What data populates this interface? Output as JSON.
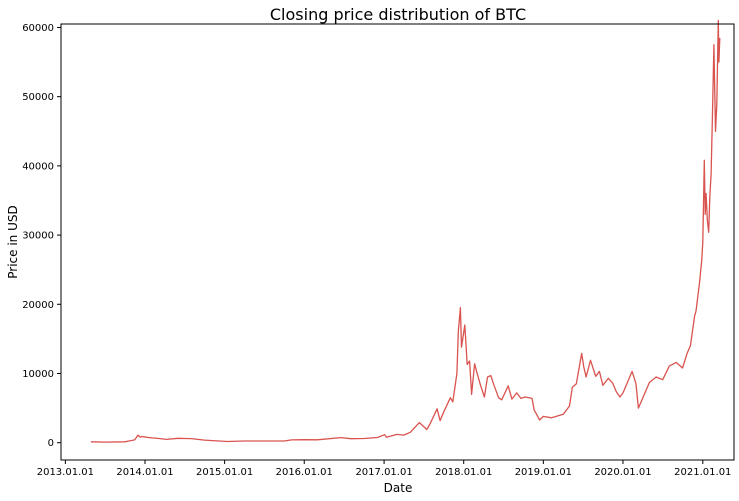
{
  "chart_data": {
    "type": "line",
    "title": "Closing price distribution of BTC",
    "xlabel": "Date",
    "ylabel": "Price in USD",
    "grid": false,
    "legend": "none",
    "ylim": [
      -2500,
      60500
    ],
    "xlim": [
      "2012-12-12",
      "2021-05-24"
    ],
    "x_ticks": [
      "2013.01.01",
      "2014.01.01",
      "2015.01.01",
      "2016.01.01",
      "2017.01.01",
      "2018.01.01",
      "2019.01.01",
      "2020.01.01",
      "2021.01.01"
    ],
    "y_ticks": [
      "0",
      "10000",
      "20000",
      "30000",
      "40000",
      "50000",
      "60000"
    ],
    "series": [
      {
        "color": "#d9534f",
        "x": [
          "2013-04-28",
          "2013-07-01",
          "2013-10-01",
          "2013-11-15",
          "2013-11-30",
          "2013-12-10",
          "2013-12-18",
          "2014-01-05",
          "2014-02-01",
          "2014-03-01",
          "2014-04-10",
          "2014-06-01",
          "2014-08-01",
          "2014-10-01",
          "2015-01-14",
          "2015-04-01",
          "2015-07-01",
          "2015-10-01",
          "2015-11-04",
          "2016-01-01",
          "2016-03-01",
          "2016-06-17",
          "2016-08-01",
          "2016-10-01",
          "2016-12-01",
          "2017-01-04",
          "2017-01-12",
          "2017-03-01",
          "2017-04-01",
          "2017-05-01",
          "2017-06-12",
          "2017-07-16",
          "2017-08-01",
          "2017-09-01",
          "2017-09-15",
          "2017-10-01",
          "2017-11-01",
          "2017-11-12",
          "2017-12-01",
          "2017-12-07",
          "2017-12-17",
          "2017-12-22",
          "2018-01-06",
          "2018-01-17",
          "2018-01-28",
          "2018-02-06",
          "2018-02-20",
          "2018-03-01",
          "2018-03-20",
          "2018-04-06",
          "2018-04-20",
          "2018-05-05",
          "2018-05-20",
          "2018-06-10",
          "2018-06-24",
          "2018-07-24",
          "2018-08-10",
          "2018-09-01",
          "2018-09-20",
          "2018-10-10",
          "2018-11-10",
          "2018-11-20",
          "2018-12-01",
          "2018-12-15",
          "2019-01-01",
          "2019-02-08",
          "2019-03-01",
          "2019-04-02",
          "2019-05-01",
          "2019-05-14",
          "2019-06-01",
          "2019-06-26",
          "2019-07-05",
          "2019-07-16",
          "2019-08-05",
          "2019-08-29",
          "2019-09-15",
          "2019-10-01",
          "2019-10-26",
          "2019-11-15",
          "2019-12-01",
          "2019-12-18",
          "2020-01-01",
          "2020-02-12",
          "2020-03-01",
          "2020-03-12",
          "2020-03-31",
          "2020-05-01",
          "2020-06-01",
          "2020-07-01",
          "2020-08-01",
          "2020-09-01",
          "2020-09-30",
          "2020-10-21",
          "2020-11-05",
          "2020-11-25",
          "2020-12-01",
          "2020-12-17",
          "2020-12-27",
          "2021-01-01",
          "2021-01-08",
          "2021-01-12",
          "2021-01-16",
          "2021-01-22",
          "2021-01-28",
          "2021-02-02",
          "2021-02-08",
          "2021-02-14",
          "2021-02-21",
          "2021-02-28",
          "2021-03-06",
          "2021-03-13",
          "2021-03-16",
          "2021-03-20"
        ],
        "y": [
          135,
          90,
          130,
          400,
          1100,
          800,
          900,
          800,
          700,
          620,
          480,
          640,
          590,
          380,
          180,
          250,
          250,
          240,
          400,
          430,
          420,
          740,
          580,
          610,
          750,
          1150,
          800,
          1200,
          1100,
          1500,
          2900,
          1900,
          2800,
          4900,
          3200,
          4400,
          6500,
          5900,
          10000,
          16000,
          19500,
          13800,
          17000,
          11300,
          11800,
          7000,
          11400,
          10300,
          8200,
          6600,
          9500,
          9700,
          8300,
          6500,
          6200,
          8200,
          6300,
          7200,
          6400,
          6600,
          6400,
          4700,
          4100,
          3300,
          3800,
          3600,
          3800,
          4100,
          5300,
          8000,
          8500,
          12900,
          11000,
          9500,
          11900,
          9600,
          10300,
          8300,
          9300,
          8600,
          7400,
          6600,
          7200,
          10300,
          8500,
          5000,
          6400,
          8700,
          9500,
          9100,
          11100,
          11600,
          10800,
          12900,
          14000,
          18400,
          19000,
          23100,
          26300,
          29000,
          40800,
          33000,
          36000,
          32000,
          30400,
          35500,
          38800,
          47000,
          57500,
          45000,
          48900,
          61000,
          55000,
          58500
        ]
      }
    ]
  }
}
